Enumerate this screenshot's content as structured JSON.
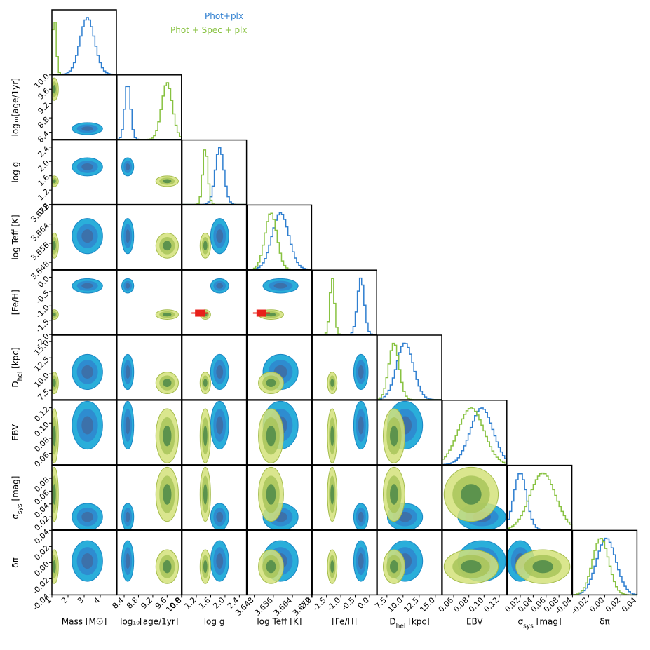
{
  "colors": {
    "blue_line": "#2f7fd0",
    "green_line": "#88c241",
    "blue_fill": [
      "#1faad8",
      "#2e8ad0",
      "#3d70a8"
    ],
    "green_fill": [
      "#d4e27a",
      "#a8c45a",
      "#4e8a4a"
    ],
    "marker": "#e8201a",
    "frame": "#000000"
  },
  "legend": [
    {
      "label": "Phot+plx",
      "color": "#2f7fd0"
    },
    {
      "label": "Phot + Spec + plx",
      "color": "#88c241"
    }
  ],
  "chart_data": {
    "type": "corner",
    "grid": false,
    "legend_placement": "top",
    "parameters": [
      {
        "key": "mass",
        "xlabel": "Mass [M☉]",
        "ylabel": "",
        "range": [
          1.0,
          5.0
        ],
        "ticks": [
          1,
          2,
          3,
          4
        ],
        "tick_labels": [
          "1",
          "2",
          "3",
          "4"
        ],
        "blue": {
          "mean": 3.2,
          "sd": 0.45
        },
        "green": {
          "mean": 1.15,
          "sd": 0.12
        }
      },
      {
        "key": "age",
        "xlabel": "log₁₀[age/1yr]",
        "ylabel": "log₁₀[age/1yr]",
        "range": [
          8.2,
          10.0
        ],
        "ticks": [
          8.4,
          8.8,
          9.2,
          9.6,
          10.0
        ],
        "tick_labels": [
          "8.4",
          "8.8",
          "9.2",
          "9.6",
          "10.0"
        ],
        "blue": {
          "mean": 8.5,
          "sd": 0.08
        },
        "green": {
          "mean": 9.6,
          "sd": 0.15
        }
      },
      {
        "key": "logg",
        "xlabel": "log g",
        "ylabel": "log g",
        "range": [
          0.8,
          2.6
        ],
        "ticks": [
          0.8,
          1.2,
          1.6,
          2.0,
          2.4
        ],
        "tick_labels": [
          "0.8",
          "1.2",
          "1.6",
          "2.0",
          "2.4"
        ],
        "blue": {
          "mean": 1.85,
          "sd": 0.12
        },
        "green": {
          "mean": 1.45,
          "sd": 0.07
        }
      },
      {
        "key": "teff",
        "xlabel": "log Teff [K]",
        "ylabel": "log Teff [K]",
        "range": [
          3.645,
          3.672
        ],
        "ticks": [
          3.648,
          3.656,
          3.664,
          3.672
        ],
        "tick_labels": [
          "3.648",
          "3.656",
          "3.664",
          "3.672"
        ],
        "blue": {
          "mean": 3.659,
          "sd": 0.0035
        },
        "green": {
          "mean": 3.655,
          "sd": 0.0025
        }
      },
      {
        "key": "feh",
        "xlabel": "[Fe/H]",
        "ylabel": "[Fe/H]",
        "range": [
          -2.0,
          0.25
        ],
        "ticks": [
          -2.0,
          -1.5,
          -1.0,
          -0.5,
          0.0
        ],
        "tick_labels": [
          "-2.0",
          "-1.5",
          "-1.0",
          "-0.5",
          "0.0"
        ],
        "blue": {
          "mean": -0.3,
          "sd": 0.12
        },
        "green": {
          "mean": -1.3,
          "sd": 0.08
        }
      },
      {
        "key": "dhel",
        "xlabel": "D_hel [kpc]",
        "ylabel": "D_hel [kpc]",
        "range": [
          6.0,
          16.0
        ],
        "ticks": [
          7.5,
          10.0,
          12.5,
          15.0
        ],
        "tick_labels": [
          "7.5",
          "10.0",
          "12.5",
          "15.0"
        ],
        "blue": {
          "mean": 10.3,
          "sd": 1.3
        },
        "green": {
          "mean": 8.6,
          "sd": 0.8
        }
      },
      {
        "key": "ebv",
        "xlabel": "EBV",
        "ylabel": "EBV",
        "range": [
          0.045,
          0.13
        ],
        "ticks": [
          0.06,
          0.08,
          0.1,
          0.12
        ],
        "tick_labels": [
          "0.06",
          "0.08",
          "0.10",
          "0.12"
        ],
        "blue": {
          "mean": 0.097,
          "sd": 0.015
        },
        "green": {
          "mean": 0.083,
          "sd": 0.017
        }
      },
      {
        "key": "sigma",
        "xlabel": "σ_sys [mag]",
        "ylabel": "σ_sys [mag]",
        "range": [
          0.0,
          0.1
        ],
        "ticks": [
          0.02,
          0.04,
          0.06,
          0.08
        ],
        "tick_labels": [
          "0.02",
          "0.04",
          "0.06",
          "0.08"
        ],
        "blue": {
          "mean": 0.02,
          "sd": 0.01
        },
        "green": {
          "mean": 0.055,
          "sd": 0.02
        }
      },
      {
        "key": "dpi",
        "xlabel": "δπ",
        "ylabel": "δπ",
        "range": [
          -0.04,
          0.04
        ],
        "ticks": [
          -0.04,
          -0.02,
          0.0,
          0.02,
          0.04
        ],
        "tick_labels": [
          "-0.04",
          "-0.02",
          "0.00",
          "0.02",
          "0.04"
        ],
        "blue": {
          "mean": 0.002,
          "sd": 0.012
        },
        "green": {
          "mean": -0.005,
          "sd": 0.01
        }
      }
    ],
    "spectroscopic_point": {
      "logg": 1.3,
      "teff": 3.651,
      "feh": -1.25
    }
  }
}
